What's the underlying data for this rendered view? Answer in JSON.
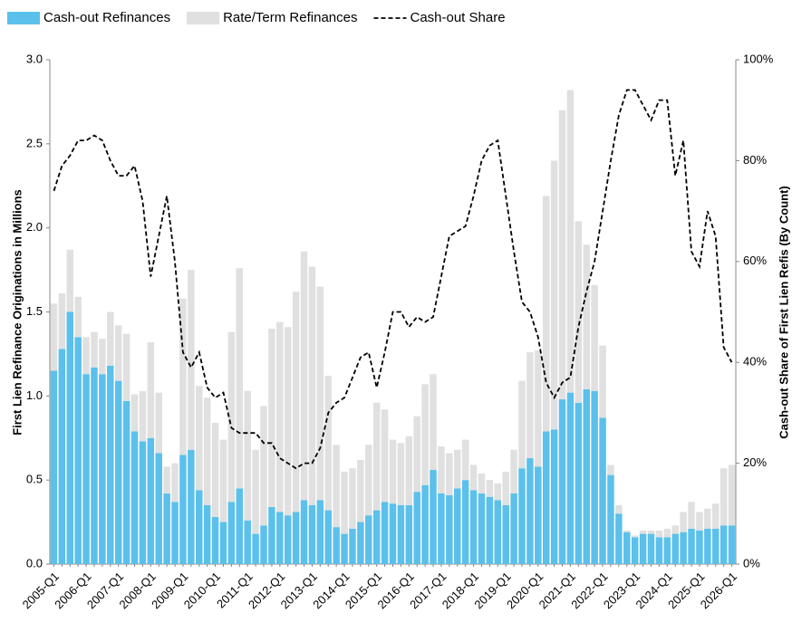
{
  "chart_data": {
    "type": "bar",
    "y_label": "First Lien Refinance Originations in Millions",
    "y2_label": "Cash-out Share of First Lien Refis (By Count)",
    "categories": [
      "2005-Q1",
      null,
      null,
      null,
      "2006-Q1",
      null,
      null,
      null,
      "2007-Q1",
      null,
      null,
      null,
      "2008-Q1",
      null,
      null,
      null,
      "2009-Q1",
      null,
      null,
      null,
      "2010-Q1",
      null,
      null,
      null,
      "2011-Q1",
      null,
      null,
      null,
      "2012-Q1",
      null,
      null,
      null,
      "2013-Q1",
      null,
      null,
      null,
      "2014-Q1",
      null,
      null,
      null,
      "2015-Q1",
      null,
      null,
      null,
      "2016-Q1",
      null,
      null,
      null,
      "2017-Q1",
      null,
      null,
      null,
      "2018-Q1",
      null,
      null,
      null,
      "2019-Q1",
      null,
      null,
      null,
      "2020-Q1",
      null,
      null,
      null,
      "2021-Q1",
      null,
      null,
      null,
      "2022-Q1",
      null,
      null,
      null,
      "2023-Q1",
      null,
      null,
      null,
      "2024-Q1",
      null,
      null,
      null,
      "2025-Q1",
      null,
      null,
      null,
      "2026-Q1"
    ],
    "series": [
      {
        "name": "Cash-out Refinances",
        "color": "#5bc0eb",
        "stacked": true,
        "values": [
          1.15,
          1.28,
          1.5,
          1.35,
          1.13,
          1.17,
          1.13,
          1.18,
          1.09,
          0.97,
          0.79,
          0.73,
          0.75,
          0.66,
          0.42,
          0.37,
          0.65,
          0.68,
          0.44,
          0.35,
          0.28,
          0.25,
          0.37,
          0.45,
          0.26,
          0.18,
          0.23,
          0.34,
          0.31,
          0.29,
          0.31,
          0.38,
          0.35,
          0.38,
          0.32,
          0.22,
          0.18,
          0.21,
          0.25,
          0.29,
          0.32,
          0.37,
          0.36,
          0.35,
          0.35,
          0.43,
          0.47,
          0.56,
          0.42,
          0.41,
          0.45,
          0.5,
          0.44,
          0.42,
          0.4,
          0.38,
          0.35,
          0.42,
          0.57,
          0.63,
          0.58,
          0.79,
          0.8,
          0.98,
          1.02,
          0.96,
          1.04,
          1.03,
          0.87,
          0.53,
          0.3,
          0.19,
          0.16,
          0.18,
          0.18,
          0.16,
          0.16,
          0.18,
          0.19,
          0.21,
          0.2,
          0.21,
          0.21,
          0.23,
          0.23
        ]
      },
      {
        "name": "Rate/Term Refinances",
        "color": "#e0e0e0",
        "stacked": true,
        "values": [
          0.4,
          0.33,
          0.37,
          0.24,
          0.22,
          0.21,
          0.21,
          0.32,
          0.33,
          0.4,
          0.22,
          0.3,
          0.57,
          0.36,
          0.16,
          0.23,
          0.93,
          1.07,
          0.62,
          0.64,
          0.56,
          0.49,
          1.01,
          1.31,
          0.77,
          0.5,
          0.71,
          1.06,
          1.13,
          1.12,
          1.31,
          1.48,
          1.42,
          1.27,
          0.8,
          0.49,
          0.37,
          0.36,
          0.37,
          0.42,
          0.64,
          0.55,
          0.38,
          0.37,
          0.41,
          0.45,
          0.6,
          0.57,
          0.28,
          0.25,
          0.23,
          0.24,
          0.15,
          0.12,
          0.1,
          0.1,
          0.2,
          0.26,
          0.52,
          0.63,
          0.69,
          1.4,
          1.6,
          1.72,
          1.8,
          1.08,
          0.86,
          0.63,
          0.43,
          0.06,
          0.05,
          0.01,
          0.01,
          0.02,
          0.02,
          0.04,
          0.05,
          0.05,
          0.12,
          0.16,
          0.11,
          0.12,
          0.15,
          0.34,
          0.36
        ]
      },
      {
        "name": "Cash-out Share",
        "color": "#000000",
        "type": "line",
        "line_style": "dashed",
        "axis": "y2",
        "values": [
          74,
          79,
          81,
          84,
          84,
          85,
          84,
          80,
          77,
          77,
          79,
          72,
          57,
          65,
          73,
          60,
          42,
          39,
          42,
          35,
          33,
          34,
          27,
          26,
          26,
          26,
          24,
          24,
          21,
          20,
          19,
          20,
          20,
          23,
          30,
          32,
          33,
          37,
          41,
          42,
          35,
          42,
          50,
          50,
          47,
          49,
          48,
          49,
          57,
          65,
          66,
          67,
          73,
          80,
          83,
          84,
          73,
          62,
          52,
          50,
          45,
          36,
          33,
          36,
          37,
          47,
          54,
          60,
          70,
          80,
          89,
          94,
          94,
          91,
          88,
          92,
          92,
          77,
          84,
          62,
          59,
          70,
          65,
          43,
          40
        ]
      }
    ],
    "ylim": [
      0,
      3
    ],
    "yticks": [
      {
        "value": 0,
        "label": "0.0"
      },
      0.5,
      {
        "value": 1,
        "label": "1.0"
      },
      1.5,
      {
        "value": 2,
        "label": "2.0"
      },
      2.5,
      {
        "value": 3,
        "label": "3.0"
      }
    ],
    "y2lim": [
      0,
      100
    ],
    "y2ticks": [
      {
        "value": 0,
        "label": "0%"
      },
      {
        "value": 20,
        "label": "20%"
      },
      {
        "value": 40,
        "label": "40%"
      },
      {
        "value": 60,
        "label": "60%"
      },
      {
        "value": 80,
        "label": "80%"
      },
      {
        "value": 100,
        "label": "100%"
      }
    ],
    "legend": "top-left",
    "grid": false
  }
}
